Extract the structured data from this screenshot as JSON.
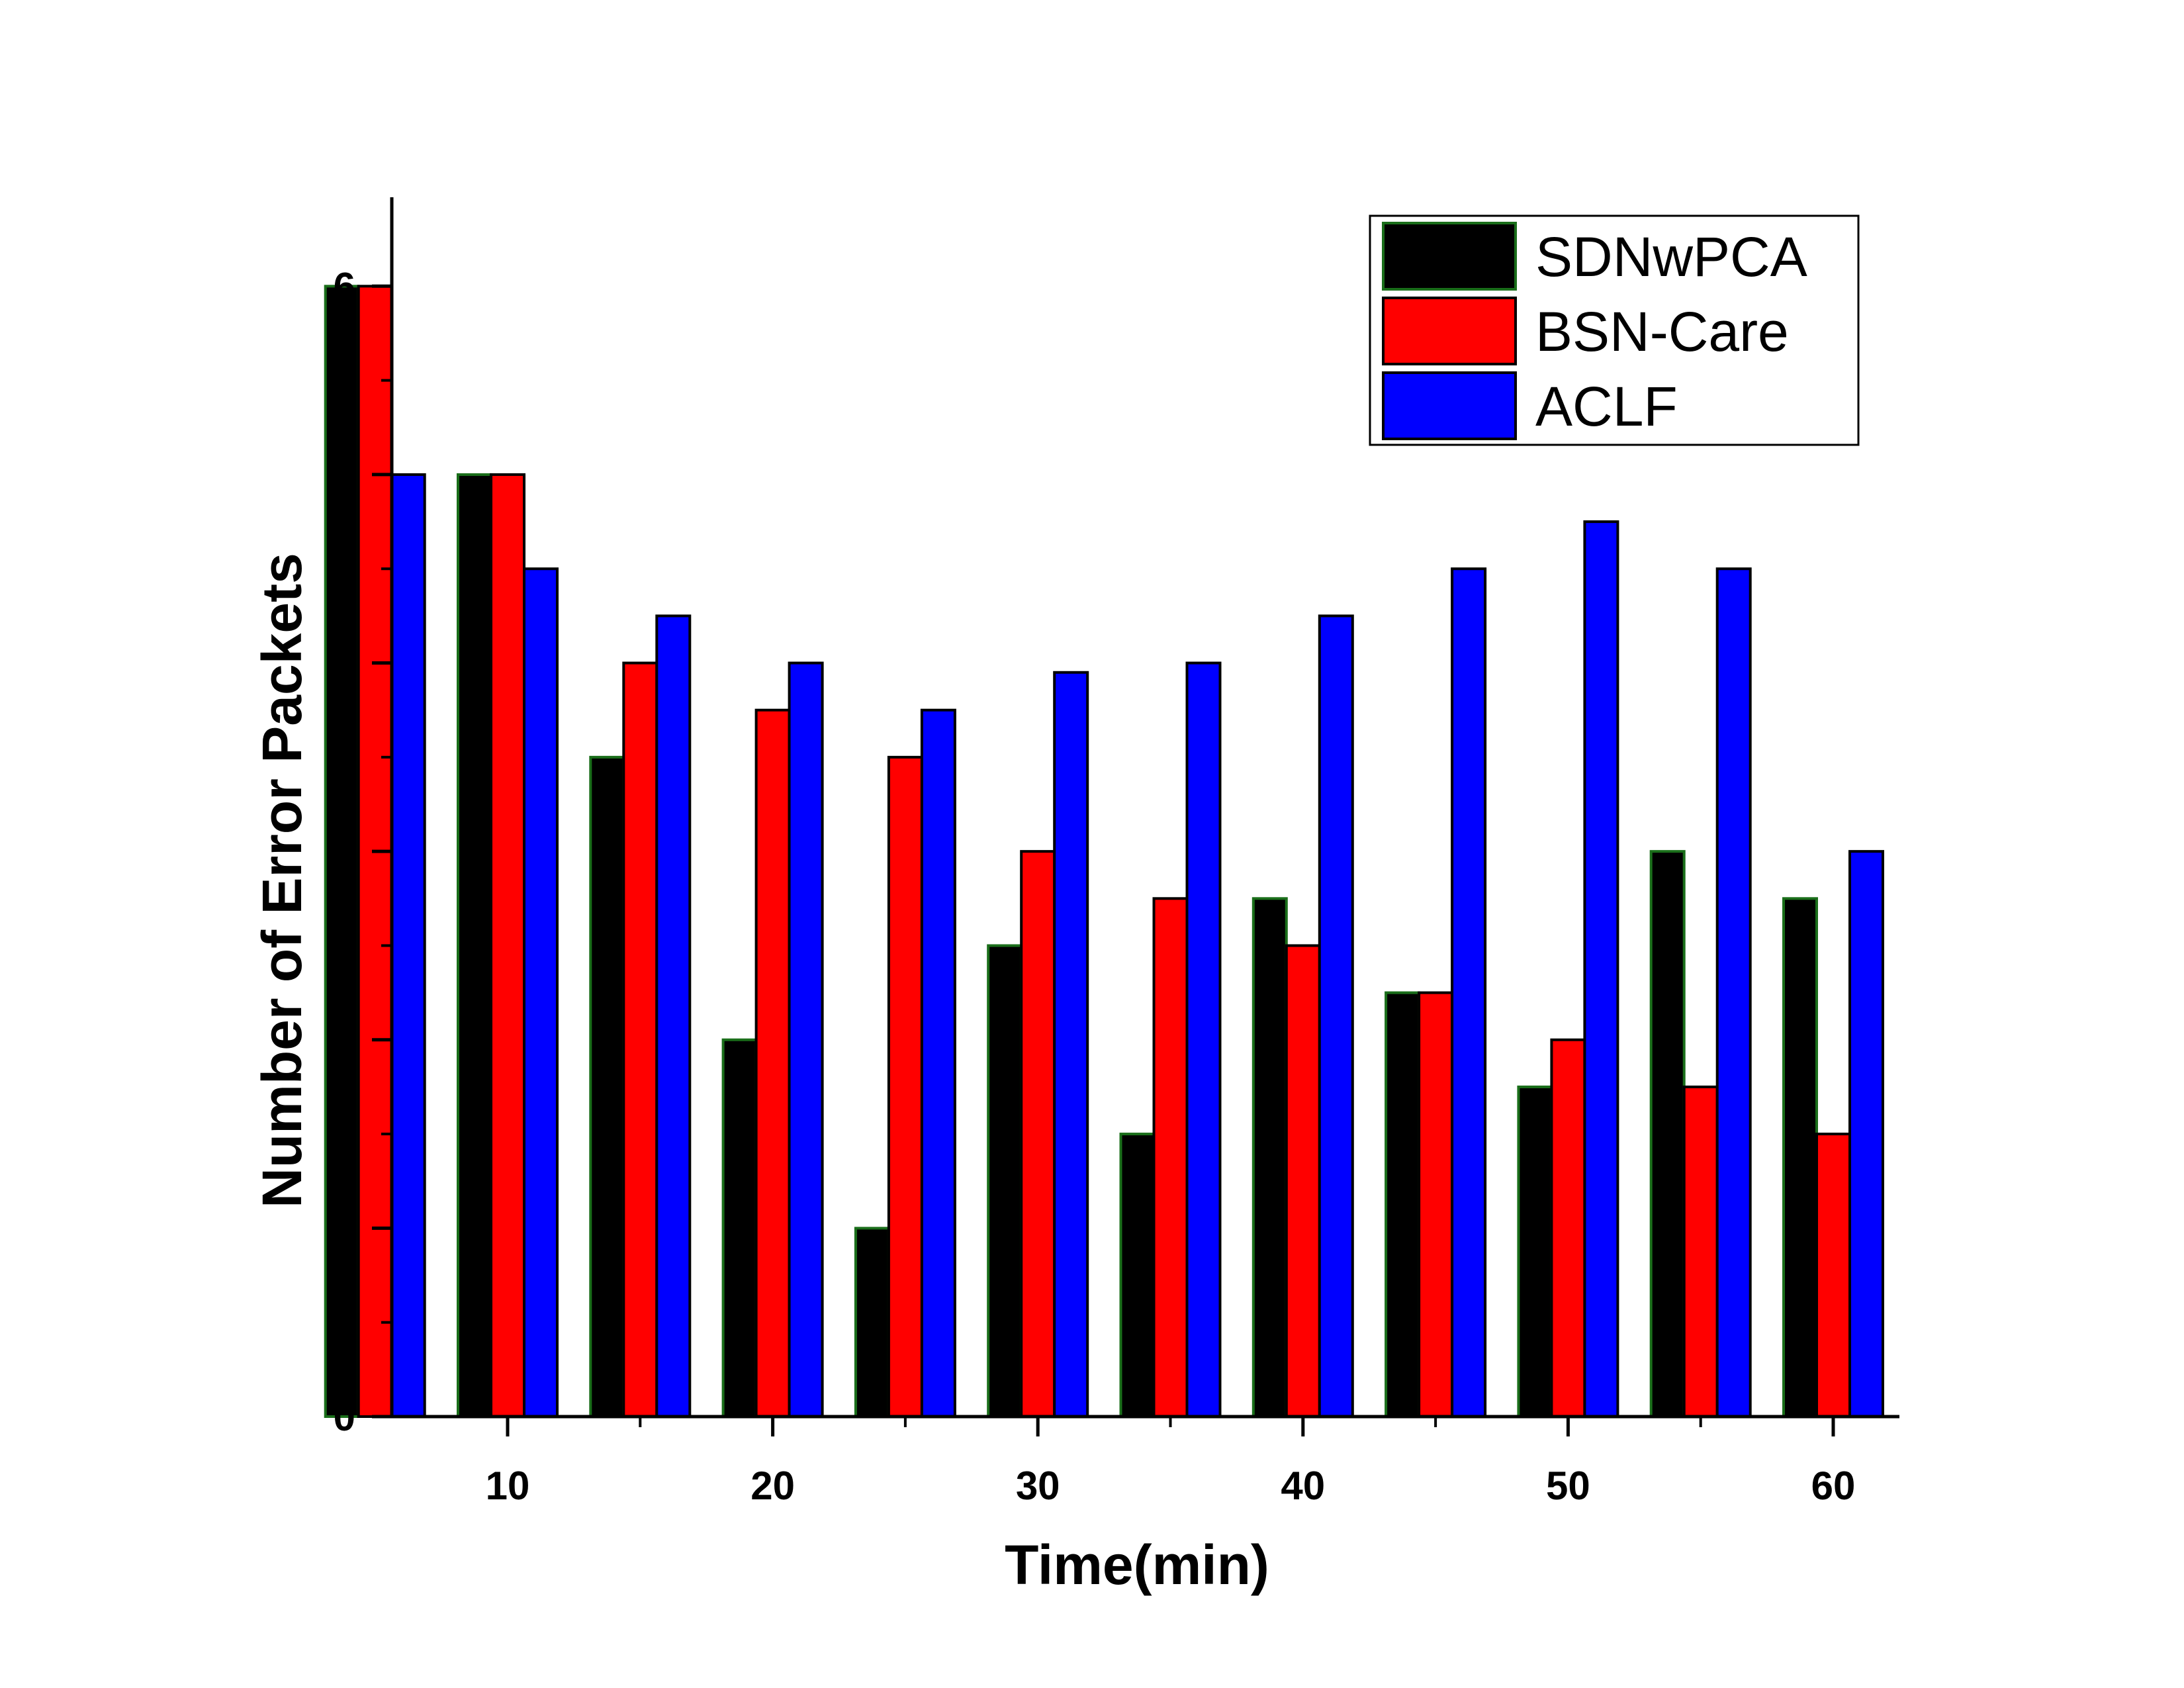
{
  "chart_data": {
    "type": "bar",
    "xlabel": "Time(min)",
    "ylabel": "Number of Error Packets",
    "ylim": [
      0,
      6.5
    ],
    "yticks": [
      "0",
      "1",
      "2",
      "3",
      "4",
      "5",
      "6"
    ],
    "xticks": [
      "10",
      "20",
      "30",
      "40",
      "50",
      "60"
    ],
    "x": [
      5,
      10,
      15,
      20,
      25,
      30,
      35,
      40,
      45,
      50,
      55,
      60
    ],
    "legend_position": "top-right",
    "grid": false,
    "series": [
      {
        "name": "SDNwPCA",
        "color": "#000000",
        "values": [
          6,
          5,
          3.5,
          2,
          1,
          2.5,
          1.5,
          2.75,
          2.25,
          1.75,
          3,
          2.75
        ]
      },
      {
        "name": "BSN-Care",
        "color": "#ff0000",
        "values": [
          6,
          5,
          4,
          3.75,
          3.5,
          3,
          2.75,
          2.5,
          2.25,
          2,
          1.75,
          1.5
        ]
      },
      {
        "name": "ACLF",
        "color": "#0000ff",
        "values": [
          5,
          4.5,
          4.25,
          4,
          3.75,
          3.95,
          4,
          4.25,
          4.5,
          4.75,
          4.5,
          3
        ]
      }
    ]
  }
}
